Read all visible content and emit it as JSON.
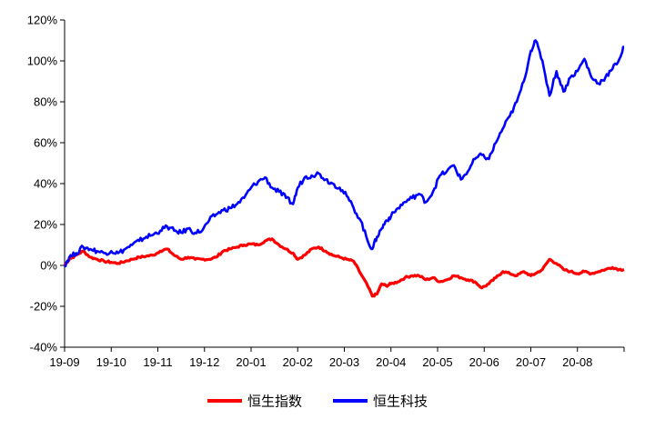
{
  "chart_data": {
    "type": "line",
    "title": "",
    "xlabel": "",
    "ylabel": "",
    "ylim": [
      -40,
      120
    ],
    "y_ticks": [
      -40,
      -20,
      0,
      20,
      40,
      60,
      80,
      100,
      120
    ],
    "y_tick_labels": [
      "-40%",
      "-20%",
      "0%",
      "20%",
      "40%",
      "60%",
      "80%",
      "100%",
      "120%"
    ],
    "x_tick_labels": [
      "19-09",
      "19-10",
      "19-11",
      "19-12",
      "20-01",
      "20-02",
      "20-03",
      "20-04",
      "20-05",
      "20-06",
      "20-07",
      "20-08"
    ],
    "xlim": [
      0,
      12
    ],
    "grid": false,
    "legend_position": "bottom-center",
    "series": [
      {
        "name": "恒生指数",
        "color": "#ff0000",
        "x": [
          0,
          0.1,
          0.25,
          0.4,
          0.55,
          0.7,
          0.85,
          1.0,
          1.15,
          1.3,
          1.45,
          1.6,
          1.75,
          1.9,
          2.05,
          2.2,
          2.35,
          2.5,
          2.65,
          2.8,
          2.95,
          3.1,
          3.25,
          3.4,
          3.55,
          3.7,
          3.85,
          4.0,
          4.15,
          4.3,
          4.45,
          4.6,
          4.75,
          4.9,
          5.0,
          5.15,
          5.3,
          5.45,
          5.6,
          5.75,
          5.9,
          6.05,
          6.2,
          6.35,
          6.5,
          6.6,
          6.7,
          6.8,
          6.9,
          7.0,
          7.15,
          7.3,
          7.45,
          7.6,
          7.75,
          7.9,
          8.05,
          8.2,
          8.35,
          8.5,
          8.65,
          8.8,
          8.95,
          9.1,
          9.25,
          9.4,
          9.55,
          9.7,
          9.85,
          10.0,
          10.1,
          10.25,
          10.4,
          10.55,
          10.7,
          10.85,
          11.0,
          11.15,
          11.3,
          11.45,
          11.6,
          11.75,
          11.9,
          12.0
        ],
        "values": [
          0,
          3,
          5,
          7,
          4,
          3,
          2,
          1.5,
          1,
          2,
          3,
          4,
          4.5,
          5,
          7,
          8,
          5,
          3,
          4,
          3,
          3,
          3,
          4,
          7,
          8,
          9,
          10,
          10.5,
          10,
          12,
          13,
          10,
          8,
          6,
          3,
          5,
          8,
          9,
          7,
          5,
          4,
          3,
          2,
          -4,
          -10,
          -15,
          -14,
          -9,
          -10,
          -9,
          -8,
          -6,
          -5,
          -5,
          -7,
          -6,
          -8,
          -7,
          -5,
          -6,
          -7,
          -8,
          -11,
          -9,
          -6,
          -3,
          -4,
          -5,
          -3,
          -5,
          -4,
          -2,
          3,
          1,
          -2,
          -3,
          -4,
          -3,
          -4,
          -3,
          -2,
          -1,
          -2,
          -2
        ],
        "legend_label": "恒生指数"
      },
      {
        "name": "恒生科技",
        "color": "#0000ff",
        "x": [
          0,
          0.1,
          0.25,
          0.4,
          0.55,
          0.7,
          0.85,
          1.0,
          1.15,
          1.3,
          1.45,
          1.6,
          1.75,
          1.9,
          2.05,
          2.2,
          2.35,
          2.5,
          2.65,
          2.8,
          2.95,
          3.1,
          3.25,
          3.4,
          3.55,
          3.7,
          3.85,
          4.0,
          4.15,
          4.3,
          4.45,
          4.6,
          4.75,
          4.9,
          5.0,
          5.15,
          5.3,
          5.45,
          5.6,
          5.75,
          5.9,
          6.05,
          6.2,
          6.35,
          6.5,
          6.6,
          6.7,
          6.8,
          6.9,
          7.0,
          7.15,
          7.3,
          7.45,
          7.6,
          7.75,
          7.9,
          8.05,
          8.2,
          8.35,
          8.5,
          8.65,
          8.8,
          8.95,
          9.1,
          9.25,
          9.4,
          9.55,
          9.7,
          9.85,
          10.0,
          10.1,
          10.25,
          10.4,
          10.55,
          10.7,
          10.85,
          11.0,
          11.15,
          11.3,
          11.45,
          11.6,
          11.75,
          11.9,
          12.0
        ],
        "values": [
          0,
          4,
          6,
          9,
          8,
          7,
          6,
          7,
          6,
          8,
          10,
          12,
          14,
          15,
          17,
          19,
          17,
          16,
          18,
          16,
          17,
          22,
          25,
          27,
          28,
          30,
          33,
          38,
          41,
          43,
          38,
          36,
          33,
          30,
          38,
          43,
          44,
          45,
          42,
          40,
          38,
          34,
          28,
          22,
          12,
          8,
          14,
          18,
          22,
          24,
          28,
          31,
          33,
          35,
          31,
          36,
          44,
          46,
          49,
          42,
          46,
          52,
          54,
          52,
          60,
          67,
          73,
          80,
          90,
          105,
          110,
          100,
          83,
          95,
          85,
          92,
          95,
          101,
          92,
          89,
          92,
          96,
          101,
          107
        ],
        "legend_label": "恒生科技"
      }
    ]
  }
}
